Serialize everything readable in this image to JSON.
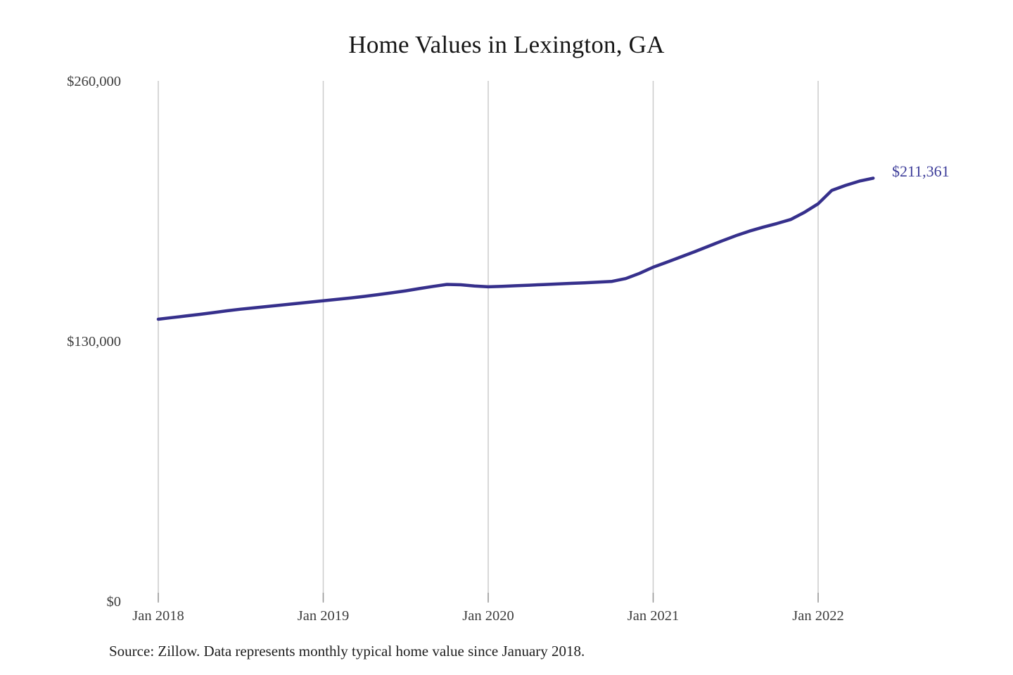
{
  "chart_data": {
    "type": "line",
    "title": "Home Values in Lexington, GA",
    "source_note": "Source: Zillow. Data represents monthly typical home value since January 2018.",
    "unit": "USD",
    "end_label": "$211,361",
    "latest_value": 211361,
    "x": [
      "Jan 2018",
      "Feb 2018",
      "Mar 2018",
      "Apr 2018",
      "May 2018",
      "Jun 2018",
      "Jul 2018",
      "Aug 2018",
      "Sep 2018",
      "Oct 2018",
      "Nov 2018",
      "Dec 2018",
      "Jan 2019",
      "Feb 2019",
      "Mar 2019",
      "Apr 2019",
      "May 2019",
      "Jun 2019",
      "Jul 2019",
      "Aug 2019",
      "Sep 2019",
      "Oct 2019",
      "Nov 2019",
      "Dec 2019",
      "Jan 2020",
      "Feb 2020",
      "Mar 2020",
      "Apr 2020",
      "May 2020",
      "Jun 2020",
      "Jul 2020",
      "Aug 2020",
      "Sep 2020",
      "Oct 2020",
      "Nov 2020",
      "Dec 2020",
      "Jan 2021",
      "Feb 2021",
      "Mar 2021",
      "Apr 2021",
      "May 2021",
      "Jun 2021",
      "Jul 2021",
      "Aug 2021",
      "Sep 2021",
      "Oct 2021",
      "Nov 2021",
      "Dec 2021",
      "Jan 2022",
      "Feb 2022",
      "Mar 2022",
      "Apr 2022",
      "May 2022"
    ],
    "values": [
      140900,
      141700,
      142500,
      143300,
      144200,
      145100,
      145900,
      146600,
      147300,
      148000,
      148700,
      149400,
      150100,
      150800,
      151500,
      152300,
      153200,
      154100,
      155100,
      156200,
      157300,
      158300,
      158100,
      157500,
      157100,
      157300,
      157600,
      157900,
      158200,
      158500,
      158800,
      159100,
      159400,
      159800,
      161200,
      163800,
      166900,
      169400,
      172000,
      174600,
      177300,
      180000,
      182600,
      184900,
      186900,
      188700,
      190700,
      194300,
      198600,
      205300,
      207800,
      209900,
      211361
    ],
    "y_axis": {
      "min": 0,
      "max": 260000,
      "ticks": [
        {
          "value": 260000,
          "label": "$260,000"
        },
        {
          "value": 130000,
          "label": "$130,000"
        },
        {
          "value": 0,
          "label": "$0"
        }
      ]
    },
    "x_axis": {
      "ticks": [
        {
          "month_index": 0,
          "label": "Jan 2018"
        },
        {
          "month_index": 12,
          "label": "Jan 2019"
        },
        {
          "month_index": 24,
          "label": "Jan 2020"
        },
        {
          "month_index": 36,
          "label": "Jan 2021"
        },
        {
          "month_index": 48,
          "label": "Jan 2022"
        }
      ]
    },
    "legend": "none",
    "grid": "vertical-only",
    "colors": {
      "line": "#36308c",
      "end_label": "#3c3c99",
      "grid": "#cccccc",
      "tick": "#999999",
      "axis_text": "#3d3d3d",
      "title_text": "#161616",
      "source_text": "#1d1d1d",
      "background": "#ffffff"
    }
  }
}
